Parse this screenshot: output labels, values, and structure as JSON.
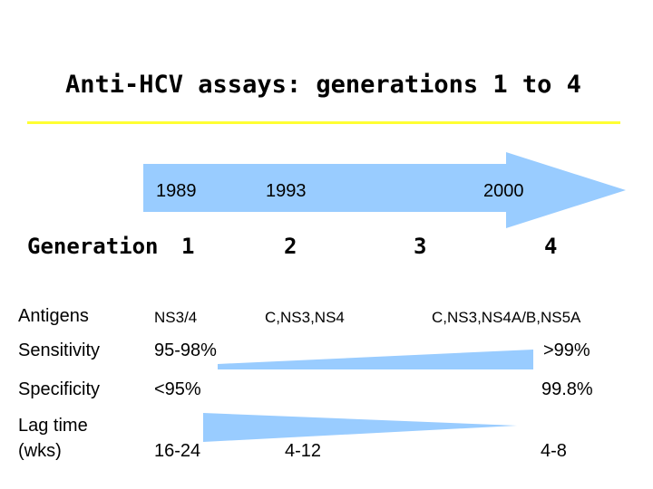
{
  "title": "Anti-HCV assays: generations 1 to 4",
  "colors": {
    "arrow": "#99ccff",
    "rule": "#ffff33",
    "wedge": "#99ccff"
  },
  "timeline": {
    "years": [
      "1989",
      "1993",
      "2000"
    ]
  },
  "generation": {
    "label": "Generation",
    "numbers": [
      "1",
      "2",
      "3",
      "4"
    ]
  },
  "rows": {
    "antigens": {
      "label": "Antigens",
      "g1": "NS3/4",
      "g2": "C,NS3,NS4",
      "g4": "C,NS3,NS4A/B,NS5A"
    },
    "sensitivity": {
      "label": "Sensitivity",
      "start": "95-98%",
      "end": ">99%"
    },
    "specificity": {
      "label": "Specificity",
      "start": "<95%",
      "end": "99.8%"
    },
    "lag_time": {
      "label_line1": "Lag time",
      "label_line2": "(wks)",
      "g1": "16-24",
      "g2": "4-12",
      "g4": "4-8"
    }
  }
}
